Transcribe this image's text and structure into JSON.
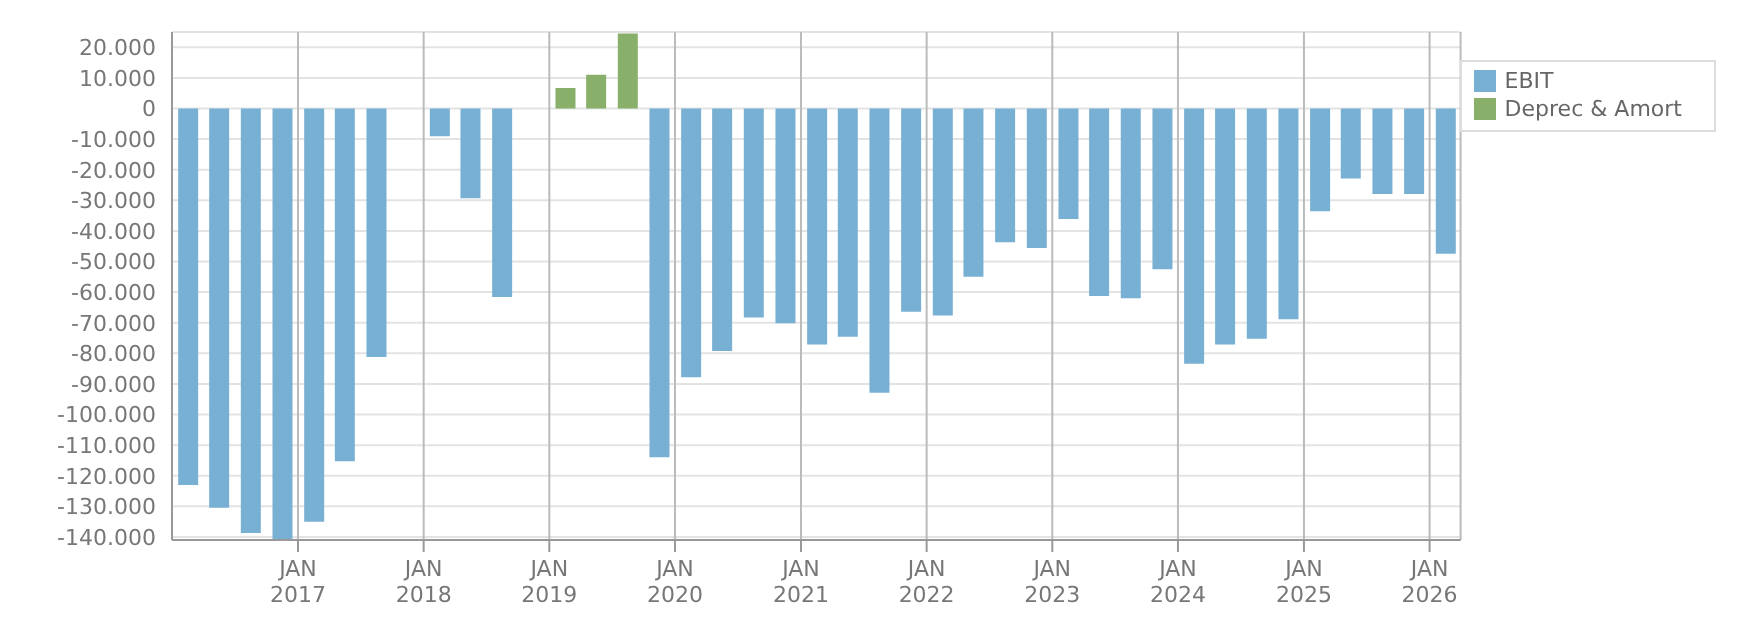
{
  "chart_data": {
    "type": "bar",
    "stacked": true,
    "x": [
      "2016-02-15",
      "2016-05-15",
      "2016-08-15",
      "2016-11-15",
      "2017-02-15",
      "2017-05-15",
      "2017-08-15",
      "2017-11-15",
      "2018-02-15",
      "2018-05-15",
      "2018-08-15",
      "2018-11-15",
      "2019-02-15",
      "2019-05-15",
      "2019-08-15",
      "2019-11-15",
      "2020-02-15",
      "2020-05-15",
      "2020-08-15",
      "2020-11-15",
      "2021-02-15",
      "2021-05-15",
      "2021-08-15",
      "2021-11-15",
      "2022-02-15",
      "2022-05-15",
      "2022-08-15",
      "2022-11-15",
      "2023-02-15",
      "2023-05-15",
      "2023-08-15",
      "2023-11-15",
      "2024-02-15",
      "2024-05-15",
      "2024-08-15",
      "2024-11-15",
      "2025-02-15",
      "2025-05-15",
      "2025-08-15",
      "2025-11-15",
      "2026-02-15"
    ],
    "series": [
      {
        "name": "EBIT",
        "color": "#78b0d3",
        "values": [
          -123000,
          -130500,
          -138700,
          -141000,
          -135000,
          -115300,
          -81200,
          0,
          -9100,
          -29300,
          -61600,
          0,
          0,
          0,
          0,
          -114000,
          -87800,
          -79200,
          -68300,
          -70200,
          -77100,
          -74600,
          -92900,
          -66400,
          -67600,
          -55000,
          -43700,
          -45600,
          -36100,
          -61300,
          -62000,
          -52500,
          -83400,
          -77100,
          -75200,
          -68900,
          -33600,
          -22900,
          -27900,
          -27900,
          -47500
        ]
      },
      {
        "name": "Deprec & Amort",
        "color": "#88b06a",
        "values": [
          0,
          0,
          0,
          0,
          0,
          0,
          0,
          0,
          0,
          0,
          0,
          0,
          6700,
          11000,
          24500,
          0,
          0,
          0,
          0,
          0,
          0,
          0,
          0,
          0,
          0,
          0,
          0,
          0,
          0,
          0,
          0,
          0,
          0,
          0,
          0,
          0,
          0,
          0,
          0,
          0,
          0
        ]
      }
    ],
    "ylim": [
      -141000,
      25000
    ],
    "yticks": [
      {
        "value": -140000,
        "label": "-140.000"
      },
      {
        "value": -130000,
        "label": "-130.000"
      },
      {
        "value": -120000,
        "label": "-120.000"
      },
      {
        "value": -110000,
        "label": "-110.000"
      },
      {
        "value": -100000,
        "label": "-100.000"
      },
      {
        "value": -90000,
        "label": "-90.000"
      },
      {
        "value": -80000,
        "label": "-80.000"
      },
      {
        "value": -70000,
        "label": "-70.000"
      },
      {
        "value": -60000,
        "label": "-60.000"
      },
      {
        "value": -50000,
        "label": "-50.000"
      },
      {
        "value": -40000,
        "label": "-40.000"
      },
      {
        "value": -30000,
        "label": "-30.000"
      },
      {
        "value": -20000,
        "label": "-20.000"
      },
      {
        "value": -10000,
        "label": "-10.000"
      },
      0,
      {
        "value": 10000,
        "label": "10.000"
      },
      {
        "value": 20000,
        "label": "20.000"
      }
    ],
    "xlim": [
      "2016-01-01",
      "2026-04-01"
    ],
    "xticks": [
      {
        "value": "2017-01-01",
        "label": "JAN 2017"
      },
      {
        "value": "2018-01-01",
        "label": "JAN 2018"
      },
      {
        "value": "2019-01-01",
        "label": "JAN 2019"
      },
      {
        "value": "2020-01-01",
        "label": "JAN 2020"
      },
      {
        "value": "2021-01-01",
        "label": "JAN 2021"
      },
      {
        "value": "2022-01-01",
        "label": "JAN 2022"
      },
      {
        "value": "2023-01-01",
        "label": "JAN 2023"
      },
      {
        "value": "2024-01-01",
        "label": "JAN 2024"
      },
      {
        "value": "2025-01-01",
        "label": "JAN 2025"
      },
      {
        "value": "2026-01-01",
        "label": "JAN 2026"
      }
    ],
    "grid": true,
    "legend": "top right"
  }
}
